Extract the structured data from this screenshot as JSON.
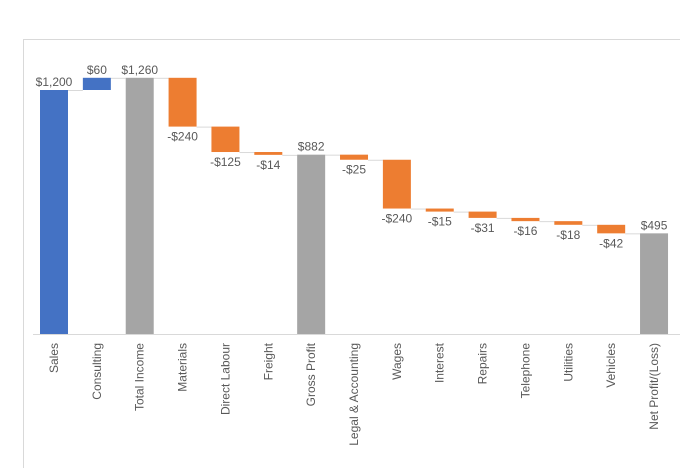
{
  "chart_data": {
    "type": "waterfall",
    "title": "",
    "xlabel": "",
    "ylabel": "",
    "ylim": [
      0,
      1300
    ],
    "grid": false,
    "legend": "none",
    "categories": [
      "Sales",
      "Consulting",
      "Total Income",
      "Materials",
      "Direct Labour",
      "Freight",
      "Gross Profit",
      "Legal & Accounting",
      "Wages",
      "Interest",
      "Repairs",
      "Telephone",
      "Utilities",
      "Vehicles",
      "Net Profit/(Loss)"
    ],
    "values": [
      1200,
      60,
      1260,
      -240,
      -125,
      -14,
      882,
      -25,
      -240,
      -15,
      -31,
      -16,
      -18,
      -42,
      495
    ],
    "kinds": [
      "increase",
      "increase",
      "total",
      "decrease",
      "decrease",
      "decrease",
      "total",
      "decrease",
      "decrease",
      "decrease",
      "decrease",
      "decrease",
      "decrease",
      "decrease",
      "total"
    ],
    "data_labels": [
      "$1,200",
      "$60",
      "$1,260",
      "-$240",
      "-$125",
      "-$14",
      "$882",
      "-$25",
      "-$240",
      "-$15",
      "-$31",
      "-$16",
      "-$18",
      "-$42",
      "$495"
    ],
    "colors": {
      "increase": "#4472C4",
      "decrease": "#ED7D31",
      "total": "#A5A5A5",
      "connector": "#D9D9D9",
      "axis": "#D9D9D9"
    }
  }
}
